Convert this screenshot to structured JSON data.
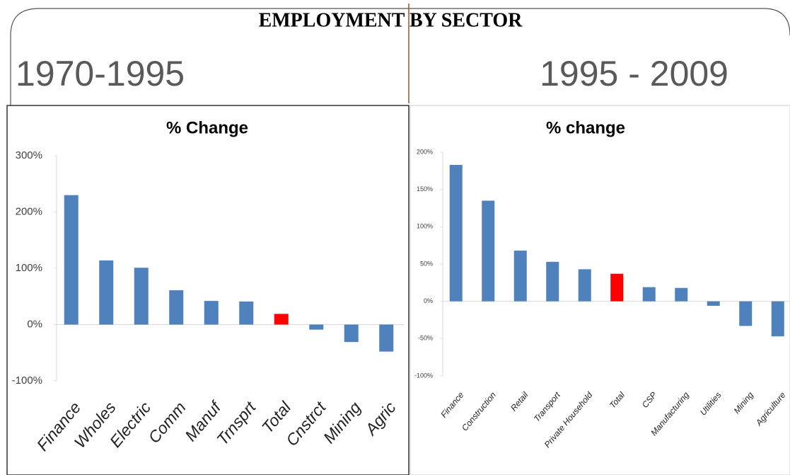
{
  "title": "EMPLOYMENT BY SECTOR",
  "periods": [
    "1970-1995",
    "1995 - 2009"
  ],
  "chart_data": [
    {
      "type": "bar",
      "title": "% Change",
      "categories": [
        "Finance",
        "Wholes",
        "Electric",
        "Comm",
        "Manuf",
        "Trnsprt",
        "Total",
        "Cnstrct",
        "Mining",
        "Agric"
      ],
      "values": [
        230,
        114,
        101,
        61,
        42,
        41,
        19,
        -9,
        -31,
        -48
      ],
      "colors": [
        "#4f81bd",
        "#4f81bd",
        "#4f81bd",
        "#4f81bd",
        "#4f81bd",
        "#4f81bd",
        "#ff0000",
        "#4f81bd",
        "#4f81bd",
        "#4f81bd"
      ],
      "ylim": [
        -100,
        300
      ],
      "yticks": [
        {
          "value": -100,
          "label": "-100%"
        },
        {
          "value": 0,
          "label": "0%"
        },
        {
          "value": 100,
          "label": "100%"
        },
        {
          "value": 200,
          "label": "200%"
        },
        {
          "value": 300,
          "label": "300%"
        }
      ],
      "grid": false
    },
    {
      "type": "bar",
      "title": "% change",
      "categories": [
        "Finance",
        "Construction",
        "Retail",
        "Transport",
        "Private Household",
        "Total",
        "CSP",
        "Manufacturing",
        "Utilities",
        "Mining",
        "Agriculture"
      ],
      "values": [
        183,
        135,
        68,
        53,
        43,
        37,
        19,
        18,
        -6,
        -33,
        -47
      ],
      "colors": [
        "#4f81bd",
        "#4f81bd",
        "#4f81bd",
        "#4f81bd",
        "#4f81bd",
        "#ff0000",
        "#4f81bd",
        "#4f81bd",
        "#4f81bd",
        "#4f81bd",
        "#4f81bd"
      ],
      "ylim": [
        -100,
        200
      ],
      "yticks": [
        {
          "value": -100,
          "label": "-100%"
        },
        {
          "value": -50,
          "label": "-50%"
        },
        {
          "value": 0,
          "label": "0%"
        },
        {
          "value": 50,
          "label": "50%"
        },
        {
          "value": 100,
          "label": "100%"
        },
        {
          "value": 150,
          "label": "150%"
        },
        {
          "value": 200,
          "label": "200%"
        }
      ],
      "grid": false
    }
  ]
}
